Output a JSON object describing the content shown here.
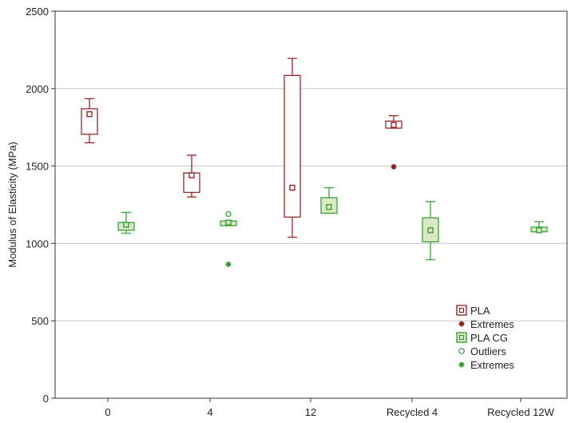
{
  "chart_data": {
    "type": "box",
    "title": "",
    "ylabel": "Modulus of Elasticity (MPa)",
    "xlabel": "",
    "ylim": [
      0,
      2500
    ],
    "yticks": [
      0,
      500,
      1000,
      1500,
      2000,
      2500
    ],
    "grid": true,
    "legend_position": "bottom-right",
    "categories": [
      "0",
      "4",
      "12",
      "Recycled 4",
      "Recycled 12W"
    ],
    "series": [
      {
        "name": "PLA",
        "color": "#8b1a1a",
        "fill": "#ffffff",
        "boxes": [
          {
            "category": "0",
            "whisker_low": 1650,
            "q1": 1705,
            "median": 1835,
            "q3": 1870,
            "whisker_high": 1935
          },
          {
            "category": "4",
            "whisker_low": 1300,
            "q1": 1330,
            "median": 1440,
            "q3": 1455,
            "whisker_high": 1570
          },
          {
            "category": "12",
            "whisker_low": 1040,
            "q1": 1170,
            "median": 1360,
            "q3": 2085,
            "whisker_high": 2195
          },
          {
            "category": "Recycled 4",
            "whisker_low": 1745,
            "q1": 1745,
            "median": 1765,
            "q3": 1790,
            "whisker_high": 1825,
            "extremes": [
              1495
            ]
          }
        ]
      },
      {
        "name": "PLA CG",
        "color": "#2e9a2e",
        "fill": "#dbe8c4",
        "boxes": [
          {
            "category": "0",
            "whisker_low": 1065,
            "q1": 1085,
            "median": 1120,
            "q3": 1135,
            "whisker_high": 1200
          },
          {
            "category": "4",
            "whisker_low": 1115,
            "q1": 1115,
            "median": 1135,
            "q3": 1145,
            "whisker_high": 1145,
            "outliers": [
              1190
            ],
            "extremes": [
              865
            ]
          },
          {
            "category": "12",
            "whisker_low": 1195,
            "q1": 1195,
            "median": 1235,
            "q3": 1295,
            "whisker_high": 1360
          },
          {
            "category": "Recycled 4",
            "whisker_low": 895,
            "q1": 1010,
            "median": 1085,
            "q3": 1165,
            "whisker_high": 1270
          },
          {
            "category": "Recycled 12W",
            "whisker_low": 1075,
            "q1": 1075,
            "median": 1085,
            "q3": 1105,
            "whisker_high": 1140
          }
        ]
      }
    ],
    "legend": [
      {
        "label": "PLA",
        "marker": "box",
        "color": "#8b1a1a",
        "fill": "#ffffff"
      },
      {
        "label": "Extremes",
        "marker": "star",
        "color": "#8b1a1a"
      },
      {
        "label": "PLA CG",
        "marker": "box",
        "color": "#2e9a2e",
        "fill": "#dbe8c4"
      },
      {
        "label": "Outliers",
        "marker": "circle",
        "color": "#2e9a2e"
      },
      {
        "label": "Extremes",
        "marker": "star",
        "color": "#2e9a2e"
      }
    ]
  }
}
